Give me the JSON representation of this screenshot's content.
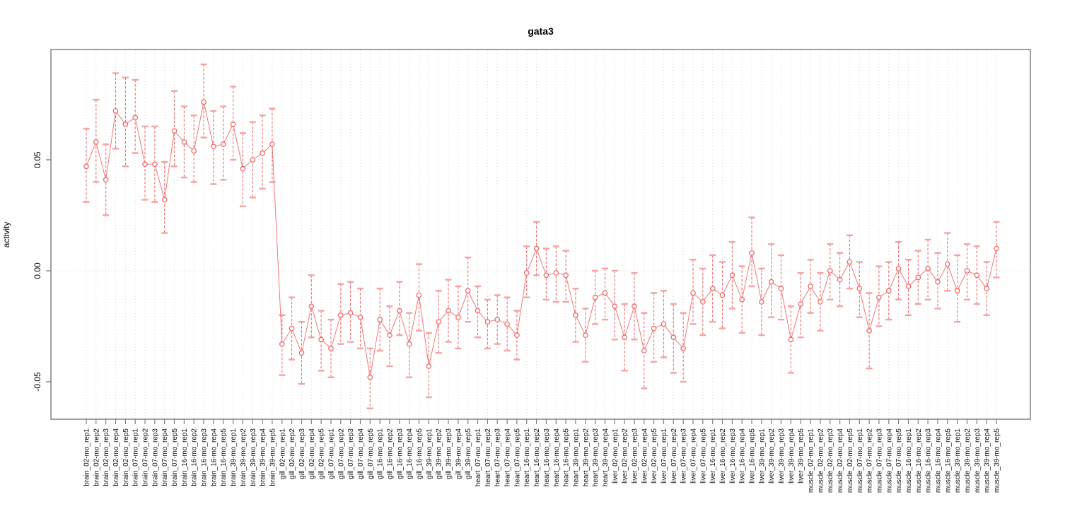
{
  "title": "gata3",
  "axes": {
    "y_label": "activity",
    "y_tick_labels": [
      "0.05",
      "0.00",
      "-0.05"
    ]
  },
  "chart_data": {
    "type": "line",
    "title": "gata3",
    "xlabel": "",
    "ylabel": "activity",
    "ylim": [
      -0.067,
      0.1
    ],
    "y_tick_values": [
      0.05,
      0,
      -0.05
    ],
    "grid": "vertical dotted gridline at every category; dotted horizontal line at y=0",
    "legend": "none",
    "marker": "open-circle",
    "error_bars": true,
    "colors": {
      "series": "#f15f5f",
      "error_cap": "#f7a1a1",
      "grid": "#dcdcdc",
      "frame": "#808080",
      "background": "#ffffff"
    },
    "categories": [
      "brain_02-mo_rep1",
      "brain_02-mo_rep2",
      "brain_02-mo_rep3",
      "brain_02-mo_rep4",
      "brain_02-mo_rep5",
      "brain_07-mo_rep1",
      "brain_07-mo_rep2",
      "brain_07-mo_rep3",
      "brain_07-mo_rep4",
      "brain_07-mo_rep5",
      "brain_16-mo_rep1",
      "brain_16-mo_rep2",
      "brain_16-mo_rep3",
      "brain_16-mo_rep4",
      "brain_16-mo_rep5",
      "brain_39-mo_rep1",
      "brain_39-mo_rep2",
      "brain_39-mo_rep3",
      "brain_39-mo_rep4",
      "brain_39-mo_rep5",
      "gill_02-mo_rep1",
      "gill_02-mo_rep2",
      "gill_02-mo_rep3",
      "gill_02-mo_rep4",
      "gill_02-mo_rep5",
      "gill_07-mo_rep1",
      "gill_07-mo_rep2",
      "gill_07-mo_rep3",
      "gill_07-mo_rep4",
      "gill_07-mo_rep5",
      "gill_16-mo_rep1",
      "gill_16-mo_rep2",
      "gill_16-mo_rep3",
      "gill_16-mo_rep4",
      "gill_16-mo_rep5",
      "gill_39-mo_rep1",
      "gill_39-mo_rep2",
      "gill_39-mo_rep3",
      "gill_39-mo_rep4",
      "gill_39-mo_rep5",
      "heart_07-mo_rep1",
      "heart_07-mo_rep2",
      "heart_07-mo_rep3",
      "heart_07-mo_rep4",
      "heart_07-mo_rep5",
      "heart_16-mo_rep1",
      "heart_16-mo_rep2",
      "heart_16-mo_rep3",
      "heart_16-mo_rep4",
      "heart_16-mo_rep5",
      "heart_39-mo_rep1",
      "heart_39-mo_rep2",
      "heart_39-mo_rep3",
      "heart_39-mo_rep4",
      "liver_02-mo_rep1",
      "liver_02-mo_rep2",
      "liver_02-mo_rep3",
      "liver_02-mo_rep4",
      "liver_02-mo_rep5",
      "liver_07-mo_rep1",
      "liver_07-mo_rep2",
      "liver_07-mo_rep3",
      "liver_07-mo_rep4",
      "liver_07-mo_rep5",
      "liver_16-mo_rep1",
      "liver_16-mo_rep2",
      "liver_16-mo_rep3",
      "liver_16-mo_rep4",
      "liver_16-mo_rep5",
      "liver_39-mo_rep1",
      "liver_39-mo_rep2",
      "liver_39-mo_rep3",
      "liver_39-mo_rep4",
      "liver_39-mo_rep5",
      "muscle_02-mo_rep1",
      "muscle_02-mo_rep2",
      "muscle_02-mo_rep3",
      "muscle_02-mo_rep4",
      "muscle_02-mo_rep5",
      "muscle_07-mo_rep1",
      "muscle_07-mo_rep2",
      "muscle_07-mo_rep3",
      "muscle_07-mo_rep4",
      "muscle_07-mo_rep5",
      "muscle_16-mo_rep1",
      "muscle_16-mo_rep2",
      "muscle_16-mo_rep3",
      "muscle_16-mo_rep4",
      "muscle_16-mo_rep5",
      "muscle_39-mo_rep1",
      "muscle_39-mo_rep2",
      "muscle_39-mo_rep3",
      "muscle_39-mo_rep4",
      "muscle_39-mo_rep5"
    ],
    "series": [
      {
        "name": "gata3 activity",
        "values": [
          0.047,
          0.058,
          0.041,
          0.072,
          0.066,
          0.069,
          0.048,
          0.048,
          0.032,
          0.063,
          0.058,
          0.054,
          0.076,
          0.056,
          0.057,
          0.066,
          0.046,
          0.05,
          0.053,
          0.057,
          -0.033,
          -0.026,
          -0.037,
          -0.016,
          -0.031,
          -0.035,
          -0.02,
          -0.019,
          -0.021,
          -0.048,
          -0.022,
          -0.029,
          -0.018,
          -0.033,
          -0.011,
          -0.043,
          -0.023,
          -0.018,
          -0.021,
          -0.009,
          -0.018,
          -0.023,
          -0.022,
          -0.024,
          -0.029,
          -0.001,
          0.01,
          -0.002,
          -0.001,
          -0.002,
          -0.02,
          -0.029,
          -0.012,
          -0.01,
          -0.016,
          -0.03,
          -0.016,
          -0.036,
          -0.026,
          -0.024,
          -0.03,
          -0.035,
          -0.01,
          -0.014,
          -0.008,
          -0.011,
          -0.002,
          -0.013,
          0.008,
          -0.014,
          -0.005,
          -0.008,
          -0.031,
          -0.015,
          -0.007,
          -0.014,
          0.0,
          -0.004,
          0.004,
          -0.008,
          -0.027,
          -0.012,
          -0.009,
          0.001,
          -0.007,
          -0.003,
          0.001,
          -0.005,
          0.003,
          -0.009,
          0.0,
          -0.002,
          -0.008,
          0.01
        ],
        "ci_low": [
          0.031,
          0.04,
          0.025,
          0.055,
          0.047,
          0.053,
          0.032,
          0.031,
          0.017,
          0.047,
          0.042,
          0.04,
          0.06,
          0.039,
          0.041,
          0.05,
          0.029,
          0.033,
          0.037,
          0.04,
          -0.047,
          -0.04,
          -0.051,
          -0.03,
          -0.045,
          -0.048,
          -0.033,
          -0.032,
          -0.035,
          -0.062,
          -0.036,
          -0.043,
          -0.029,
          -0.048,
          -0.027,
          -0.057,
          -0.037,
          -0.032,
          -0.035,
          -0.023,
          -0.03,
          -0.035,
          -0.033,
          -0.036,
          -0.04,
          -0.012,
          -0.002,
          -0.013,
          -0.014,
          -0.014,
          -0.032,
          -0.041,
          -0.024,
          -0.022,
          -0.031,
          -0.045,
          -0.031,
          -0.053,
          -0.041,
          -0.039,
          -0.046,
          -0.05,
          -0.024,
          -0.029,
          -0.023,
          -0.026,
          -0.017,
          -0.028,
          -0.007,
          -0.029,
          -0.021,
          -0.022,
          -0.046,
          -0.03,
          -0.019,
          -0.027,
          -0.013,
          -0.016,
          -0.008,
          -0.021,
          -0.044,
          -0.025,
          -0.022,
          -0.013,
          -0.02,
          -0.015,
          -0.013,
          -0.017,
          -0.009,
          -0.023,
          -0.013,
          -0.015,
          -0.02,
          -0.003
        ],
        "ci_high": [
          0.064,
          0.077,
          0.057,
          0.089,
          0.087,
          0.086,
          0.065,
          0.065,
          0.049,
          0.081,
          0.074,
          0.07,
          0.093,
          0.072,
          0.074,
          0.083,
          0.062,
          0.067,
          0.07,
          0.073,
          -0.02,
          -0.012,
          -0.023,
          -0.002,
          -0.018,
          -0.022,
          -0.006,
          -0.005,
          -0.008,
          -0.035,
          -0.008,
          -0.016,
          -0.005,
          -0.019,
          0.003,
          -0.028,
          -0.009,
          -0.004,
          -0.007,
          0.006,
          -0.007,
          -0.013,
          -0.011,
          -0.012,
          -0.018,
          0.011,
          0.022,
          0.01,
          0.011,
          0.009,
          -0.008,
          -0.017,
          0.0,
          0.001,
          0.0,
          -0.015,
          -0.001,
          -0.019,
          -0.01,
          -0.009,
          -0.015,
          -0.019,
          0.005,
          0.001,
          0.007,
          0.004,
          0.013,
          0.002,
          0.024,
          0.001,
          0.012,
          0.007,
          -0.016,
          -0.001,
          0.005,
          -0.001,
          0.012,
          0.008,
          0.016,
          0.004,
          -0.01,
          0.002,
          0.004,
          0.013,
          0.005,
          0.009,
          0.014,
          0.008,
          0.017,
          0.007,
          0.012,
          0.011,
          0.004,
          0.022
        ]
      }
    ]
  }
}
